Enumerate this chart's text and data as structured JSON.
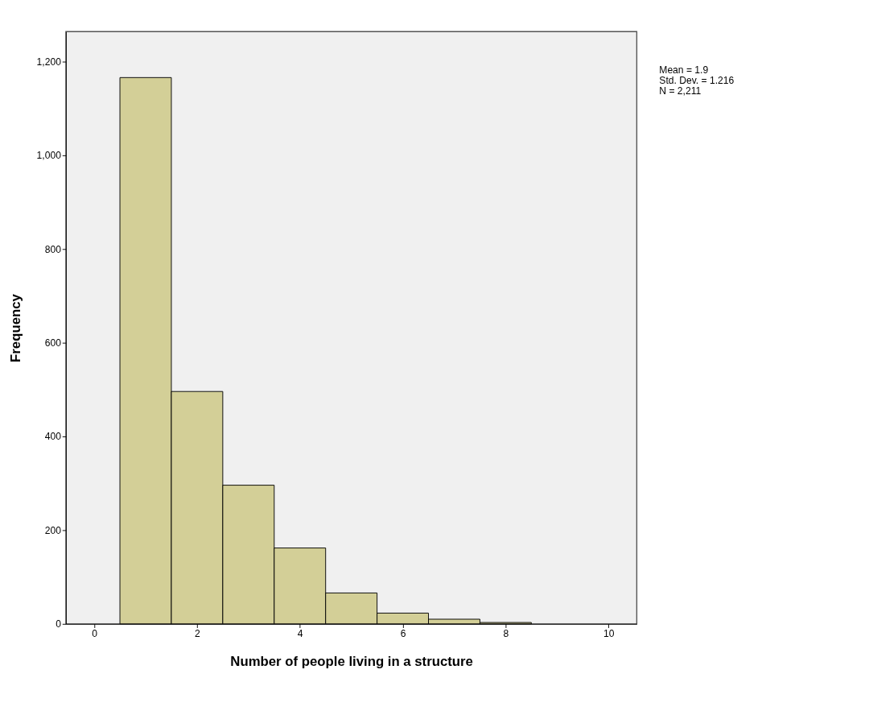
{
  "chart_data": {
    "type": "histogram",
    "xlabel": "Number of people living in a structure",
    "ylabel": "Frequency",
    "bins": [
      0.5,
      1.5,
      2.5,
      3.5,
      4.5,
      5.5,
      6.5,
      7.5,
      8.5
    ],
    "values": [
      1166,
      496,
      296,
      162,
      66,
      23,
      10,
      3
    ],
    "color": "#d3cf97",
    "xlim": [
      -0.55,
      10.55
    ],
    "xticks": [
      0,
      2,
      4,
      6,
      8,
      10
    ],
    "ylim": [
      0,
      1264
    ],
    "yticks": [
      0,
      200,
      400,
      600,
      800,
      {
        "value": 1000,
        "label": "1,000"
      },
      {
        "value": 1200,
        "label": "1,200"
      }
    ],
    "grid": false,
    "annotations": [
      "Mean = 1.9",
      "Std. Dev. = 1.216",
      "N = 2,211"
    ]
  }
}
